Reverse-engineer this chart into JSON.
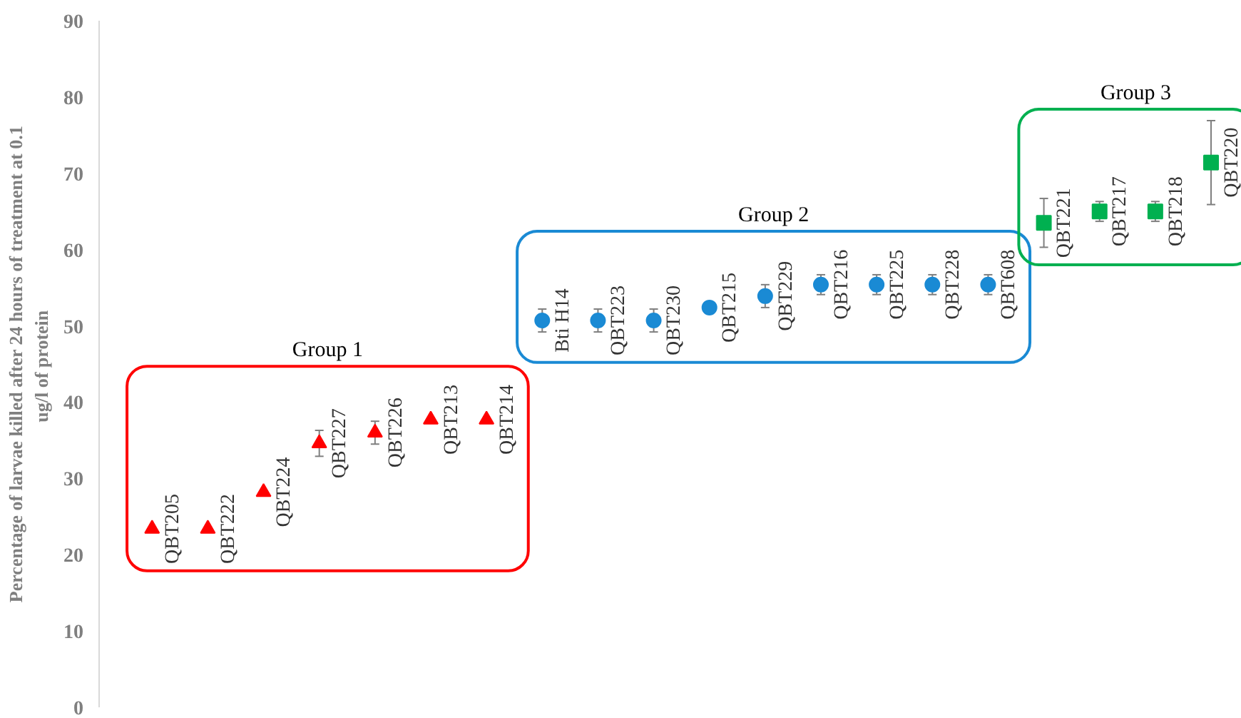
{
  "chart_data": {
    "type": "scatter",
    "ylabel": "Percentage of larvae killed after 24 hours of treatment at 0.1\nug/l  of protein",
    "categories": [
      "QBT205",
      "QBT222",
      "QBT224",
      "QBT227",
      "QBT226",
      "QBT213",
      "QBT214",
      "Bti H14",
      "QBT223",
      "QBT230",
      "QBT215",
      "QBT229",
      "QBT216",
      "QBT225",
      "QBT228",
      "QBT608",
      "QBT221",
      "QBT217",
      "QBT218",
      "QBT220"
    ],
    "series": [
      {
        "name": "Group 1",
        "color": "#ff0000",
        "marker": "triangle",
        "values": [
          23.4,
          23.4,
          28.2,
          34.6,
          36.0,
          37.7,
          37.7,
          null,
          null,
          null,
          null,
          null,
          null,
          null,
          null,
          null,
          null,
          null,
          null,
          null
        ],
        "errors": [
          null,
          null,
          null,
          1.7,
          1.5,
          null,
          null,
          null,
          null,
          null,
          null,
          null,
          null,
          null,
          null,
          null,
          null,
          null,
          null,
          null
        ]
      },
      {
        "name": "Group 2",
        "color": "#1a8ad4",
        "marker": "circle",
        "values": [
          null,
          null,
          null,
          null,
          null,
          null,
          null,
          50.7,
          50.7,
          50.7,
          52.4,
          53.9,
          55.4,
          55.4,
          55.4,
          55.4,
          null,
          null,
          null,
          null
        ],
        "errors": [
          null,
          null,
          null,
          null,
          null,
          null,
          null,
          1.5,
          1.5,
          1.5,
          null,
          1.5,
          1.3,
          1.3,
          1.3,
          1.3,
          null,
          null,
          null,
          null
        ]
      },
      {
        "name": "Group 3",
        "color": "#00b050",
        "marker": "square",
        "values": [
          null,
          null,
          null,
          null,
          null,
          null,
          null,
          null,
          null,
          null,
          null,
          null,
          null,
          null,
          null,
          null,
          63.5,
          65.0,
          65.0,
          71.4
        ],
        "errors": [
          null,
          null,
          null,
          null,
          null,
          null,
          null,
          null,
          null,
          null,
          null,
          null,
          null,
          null,
          null,
          null,
          3.2,
          1.3,
          1.3,
          5.5
        ]
      }
    ],
    "ylim": [
      0,
      90
    ],
    "yticks": [
      0,
      10,
      20,
      30,
      40,
      50,
      60,
      70,
      80,
      90
    ],
    "grid": false,
    "tick_labels": "y"
  }
}
